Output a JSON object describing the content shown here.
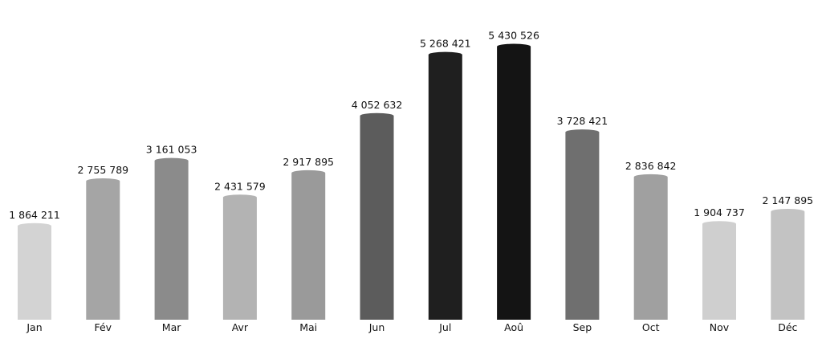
{
  "chart_data": {
    "type": "bar",
    "title": "",
    "xlabel": "",
    "ylabel": "",
    "ylim": [
      0,
      5700000
    ],
    "grid": false,
    "legend": "none",
    "categories": [
      "Jan",
      "Fév",
      "Mar",
      "Avr",
      "Mai",
      "Jun",
      "Jul",
      "Aoû",
      "Sep",
      "Oct",
      "Nov",
      "Déc"
    ],
    "values": [
      1864211,
      2755789,
      3161053,
      2431579,
      2917895,
      4052632,
      5268421,
      5430526,
      3728421,
      2836842,
      1904737,
      2147895
    ],
    "value_labels": [
      "1 864 211",
      "2 755 789",
      "3 161 053",
      "2 431 579",
      "2 917 895",
      "4 052 632",
      "5 268 421",
      "5 430 526",
      "3 728 421",
      "2 836 842",
      "1 904 737",
      "2 147 895"
    ],
    "bar_colors": [
      "#d3d3d3",
      "#a5a5a5",
      "#8b8b8b",
      "#b3b3b3",
      "#9a9a9a",
      "#5c5c5c",
      "#1f1f1f",
      "#141414",
      "#6f6f6f",
      "#a0a0a0",
      "#cfcfcf",
      "#c3c3c3"
    ]
  }
}
